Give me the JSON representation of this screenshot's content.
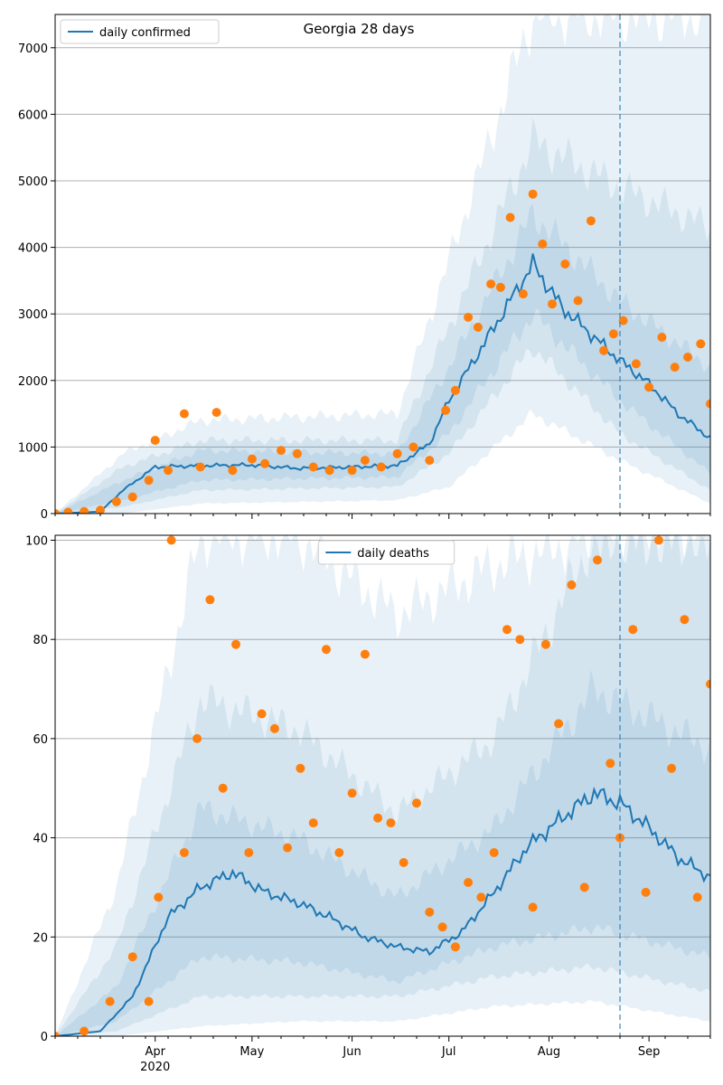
{
  "title": "Georgia 28 days",
  "colors": {
    "line": "#1f77b4",
    "points": "#ff7f0e",
    "band": "#1f77b4",
    "grid": "#b0b0b0",
    "vline": "#1f77b4"
  },
  "chart_data": [
    {
      "type": "line",
      "name": "confirmed-panel",
      "legend": {
        "label": "daily confirmed",
        "placement": "top-left"
      },
      "ylim": [
        0,
        7500
      ],
      "yticks": [
        0,
        1000,
        2000,
        3000,
        4000,
        5000,
        6000,
        7000
      ],
      "grid": "y",
      "forecast_start": "2020-08-23",
      "model_series": {
        "name": "daily confirmed",
        "x": [
          "2020-03-01",
          "2020-03-15",
          "2020-03-22",
          "2020-04-01",
          "2020-04-15",
          "2020-05-01",
          "2020-05-15",
          "2020-06-01",
          "2020-06-15",
          "2020-06-25",
          "2020-07-01",
          "2020-07-10",
          "2020-07-20",
          "2020-07-27",
          "2020-08-05",
          "2020-08-15",
          "2020-08-23",
          "2020-09-01",
          "2020-09-10",
          "2020-09-20"
        ],
        "values": [
          0,
          30,
          350,
          700,
          720,
          730,
          680,
          700,
          720,
          1050,
          1700,
          2400,
          3200,
          3750,
          3100,
          2650,
          2300,
          1950,
          1500,
          1130
        ]
      },
      "bands": [
        {
          "x": [
            "2020-03-01",
            "2020-03-22",
            "2020-04-15",
            "2020-06-15",
            "2020-07-01",
            "2020-07-27",
            "2020-08-23",
            "2020-09-20"
          ],
          "lower": [
            0,
            0,
            150,
            200,
            400,
            1500,
            800,
            150
          ],
          "upper": [
            0,
            900,
            1400,
            1500,
            3800,
            7500,
            7500,
            7500
          ]
        },
        {
          "x": [
            "2020-03-01",
            "2020-03-22",
            "2020-04-15",
            "2020-06-15",
            "2020-07-01",
            "2020-07-27",
            "2020-08-23",
            "2020-09-20"
          ],
          "lower": [
            0,
            100,
            350,
            400,
            900,
            2500,
            1200,
            350
          ],
          "upper": [
            0,
            700,
            1100,
            1100,
            2800,
            5600,
            4900,
            4300
          ]
        },
        {
          "x": [
            "2020-03-01",
            "2020-03-22",
            "2020-04-15",
            "2020-06-15",
            "2020-07-01",
            "2020-07-27",
            "2020-08-23",
            "2020-09-20"
          ],
          "lower": [
            0,
            200,
            500,
            550,
            1200,
            3000,
            1700,
            600
          ],
          "upper": [
            0,
            500,
            950,
            900,
            2200,
            4500,
            3200,
            2200
          ]
        }
      ],
      "observed": {
        "x": [
          "2020-03-01",
          "2020-03-05",
          "2020-03-10",
          "2020-03-15",
          "2020-03-20",
          "2020-03-25",
          "2020-03-30",
          "2020-04-01",
          "2020-04-05",
          "2020-04-10",
          "2020-04-15",
          "2020-04-20",
          "2020-04-25",
          "2020-05-01",
          "2020-05-05",
          "2020-05-10",
          "2020-05-15",
          "2020-05-20",
          "2020-05-25",
          "2020-06-01",
          "2020-06-05",
          "2020-06-10",
          "2020-06-15",
          "2020-06-20",
          "2020-06-25",
          "2020-06-30",
          "2020-07-03",
          "2020-07-07",
          "2020-07-10",
          "2020-07-14",
          "2020-07-17",
          "2020-07-20",
          "2020-07-24",
          "2020-07-27",
          "2020-07-30",
          "2020-08-02",
          "2020-08-06",
          "2020-08-10",
          "2020-08-14",
          "2020-08-18",
          "2020-08-21",
          "2020-08-24",
          "2020-08-28",
          "2020-09-01",
          "2020-09-05",
          "2020-09-09",
          "2020-09-13",
          "2020-09-17",
          "2020-09-20"
        ],
        "values": [
          0,
          20,
          30,
          50,
          180,
          250,
          500,
          1100,
          650,
          1500,
          700,
          1520,
          650,
          820,
          750,
          950,
          900,
          700,
          650,
          650,
          800,
          700,
          900,
          1000,
          800,
          1550,
          1850,
          2950,
          2800,
          3450,
          3400,
          4450,
          3300,
          4800,
          4050,
          3150,
          3750,
          3200,
          4400,
          2450,
          2700,
          2900,
          2250,
          1900,
          2650,
          2200,
          2350,
          2550,
          1650
        ]
      }
    },
    {
      "type": "line",
      "name": "deaths-panel",
      "legend": {
        "label": "daily deaths",
        "placement": "top-center"
      },
      "xlim": [
        "2020-03-01",
        "2020-09-20"
      ],
      "ylim": [
        0,
        101
      ],
      "yticks": [
        0,
        20,
        40,
        60,
        80,
        100
      ],
      "xticks": [
        {
          "date": "2020-04-01",
          "label": "Apr",
          "sublabel": "2020"
        },
        {
          "date": "2020-05-01",
          "label": "May"
        },
        {
          "date": "2020-06-01",
          "label": "Jun"
        },
        {
          "date": "2020-07-01",
          "label": "Jul"
        },
        {
          "date": "2020-08-01",
          "label": "Aug"
        },
        {
          "date": "2020-09-01",
          "label": "Sep"
        }
      ],
      "grid": "y",
      "forecast_start": "2020-08-23",
      "model_series": {
        "name": "daily deaths",
        "x": [
          "2020-03-01",
          "2020-03-15",
          "2020-03-25",
          "2020-04-05",
          "2020-04-15",
          "2020-04-25",
          "2020-05-05",
          "2020-05-15",
          "2020-05-25",
          "2020-06-05",
          "2020-06-15",
          "2020-06-25",
          "2020-07-05",
          "2020-07-15",
          "2020-07-25",
          "2020-08-05",
          "2020-08-15",
          "2020-08-23",
          "2020-09-01",
          "2020-09-10",
          "2020-09-20"
        ],
        "values": [
          0,
          1,
          8,
          24,
          30,
          33,
          29,
          27,
          24,
          20,
          18,
          17,
          21,
          29,
          38,
          44,
          49,
          47,
          42,
          36,
          32
        ]
      },
      "bands": [
        {
          "x": [
            "2020-03-01",
            "2020-03-20",
            "2020-04-15",
            "2020-05-15",
            "2020-06-15",
            "2020-07-15",
            "2020-08-15",
            "2020-09-20"
          ],
          "lower": [
            0,
            0,
            2,
            3,
            3,
            6,
            7,
            3
          ],
          "upper": [
            0,
            30,
            101,
            101,
            85,
            95,
            101,
            101
          ]
        },
        {
          "x": [
            "2020-03-01",
            "2020-03-20",
            "2020-04-15",
            "2020-05-15",
            "2020-06-15",
            "2020-07-15",
            "2020-08-15",
            "2020-09-20"
          ],
          "lower": [
            0,
            1,
            8,
            8,
            8,
            12,
            14,
            9
          ],
          "upper": [
            0,
            18,
            68,
            62,
            45,
            60,
            101,
            101
          ]
        },
        {
          "x": [
            "2020-03-01",
            "2020-03-20",
            "2020-04-15",
            "2020-05-15",
            "2020-06-15",
            "2020-07-15",
            "2020-08-15",
            "2020-09-20"
          ],
          "lower": [
            0,
            3,
            16,
            15,
            11,
            18,
            22,
            16
          ],
          "upper": [
            0,
            10,
            46,
            40,
            28,
            42,
            70,
            58
          ]
        }
      ],
      "observed": {
        "x": [
          "2020-03-01",
          "2020-03-10",
          "2020-03-18",
          "2020-03-25",
          "2020-03-30",
          "2020-04-02",
          "2020-04-06",
          "2020-04-10",
          "2020-04-14",
          "2020-04-18",
          "2020-04-22",
          "2020-04-26",
          "2020-04-30",
          "2020-05-04",
          "2020-05-08",
          "2020-05-12",
          "2020-05-16",
          "2020-05-20",
          "2020-05-24",
          "2020-05-28",
          "2020-06-01",
          "2020-06-05",
          "2020-06-09",
          "2020-06-13",
          "2020-06-17",
          "2020-06-21",
          "2020-06-25",
          "2020-06-29",
          "2020-07-03",
          "2020-07-07",
          "2020-07-11",
          "2020-07-15",
          "2020-07-19",
          "2020-07-23",
          "2020-07-27",
          "2020-07-31",
          "2020-08-04",
          "2020-08-08",
          "2020-08-12",
          "2020-08-16",
          "2020-08-20",
          "2020-08-23",
          "2020-08-27",
          "2020-08-31",
          "2020-09-04",
          "2020-09-08",
          "2020-09-12",
          "2020-09-16",
          "2020-09-20"
        ],
        "values": [
          0,
          1,
          7,
          16,
          7,
          28,
          100,
          37,
          60,
          88,
          50,
          79,
          37,
          65,
          62,
          38,
          54,
          43,
          78,
          37,
          49,
          77,
          44,
          43,
          35,
          47,
          25,
          22,
          18,
          31,
          28,
          37,
          82,
          80,
          26,
          79,
          63,
          91,
          30,
          96,
          55,
          40,
          82,
          29,
          100,
          54,
          84,
          28,
          71
        ]
      }
    }
  ]
}
